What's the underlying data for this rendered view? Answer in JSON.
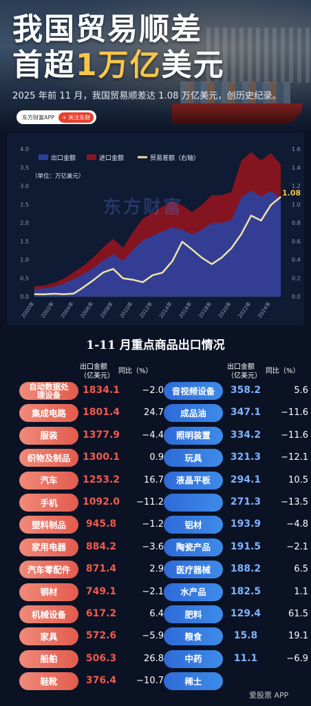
{
  "header": {
    "title_line1": "我国贸易顺差",
    "title_line2_pre": "首超",
    "title_line2_highlight": "1万亿",
    "title_line2_post": "美元",
    "subtitle": "2025 年前 11 月，我国贸易顺差达 1.08 万亿美元，创历史纪录。",
    "badge_app": "东方财富APP",
    "badge_follow": "+ 关注东财"
  },
  "watermark": "东方财富",
  "footer_watermark": "爱股票 APP",
  "colors": {
    "export": "#2e3f9b",
    "import": "#8b1420",
    "balance": "#f2e4a6",
    "left_pill": "#e25b4d",
    "right_pill": "#3d8be8"
  },
  "chart_data": {
    "type": "area",
    "legend": [
      "出口金额",
      "进口金额",
      "贸易差额（右轴）"
    ],
    "unit_label": "（单位：万亿美元）",
    "x": [
      2000,
      2001,
      2002,
      2003,
      2004,
      2005,
      2006,
      2007,
      2008,
      2009,
      2010,
      2011,
      2012,
      2013,
      2014,
      2015,
      2016,
      2017,
      2018,
      2019,
      2020,
      2021,
      2022,
      2023,
      2024,
      2025
    ],
    "x_tick_labels": [
      "2000年",
      "2002年",
      "2004年",
      "2006年",
      "2008年",
      "2010年",
      "2012年",
      "2014年",
      "2016年",
      "2018年",
      "2020年",
      "2022年",
      "2024年"
    ],
    "series": [
      {
        "name": "出口金额",
        "axis": "left",
        "values": [
          0.25,
          0.27,
          0.33,
          0.44,
          0.59,
          0.76,
          0.97,
          1.22,
          1.43,
          1.2,
          1.58,
          1.9,
          2.05,
          2.21,
          2.34,
          2.27,
          2.1,
          2.26,
          2.49,
          2.5,
          2.59,
          3.36,
          3.59,
          3.38,
          3.58,
          3.31
        ]
      },
      {
        "name": "进口金额",
        "axis": "left",
        "values": [
          0.23,
          0.24,
          0.3,
          0.41,
          0.56,
          0.66,
          0.79,
          0.96,
          1.13,
          1.01,
          1.4,
          1.74,
          1.82,
          1.95,
          1.96,
          1.68,
          1.59,
          1.84,
          2.14,
          2.08,
          2.06,
          2.69,
          2.72,
          2.56,
          2.59,
          2.23
        ]
      },
      {
        "name": "贸易差额（右轴）",
        "axis": "right",
        "values": [
          0.024,
          0.023,
          0.03,
          0.025,
          0.032,
          0.102,
          0.178,
          0.262,
          0.298,
          0.196,
          0.182,
          0.155,
          0.23,
          0.259,
          0.383,
          0.594,
          0.51,
          0.42,
          0.351,
          0.421,
          0.524,
          0.676,
          0.877,
          0.823,
          0.992,
          1.08
        ]
      }
    ],
    "ylim_left": [
      0,
      4.0
    ],
    "yticks_left": [
      "0.0",
      "0.5",
      "1.0",
      "1.5",
      "2.0",
      "2.5",
      "3.0",
      "3.5",
      "4.0"
    ],
    "ylim_right": [
      0,
      1.6
    ],
    "yticks_right": [
      "0.0",
      "0.2",
      "0.4",
      "0.6",
      "0.8",
      "1.0",
      "1.2",
      "1.4",
      "1.6"
    ],
    "end_label": "1.08",
    "legend_position": "top-left"
  },
  "table": {
    "title": "1-11 月重点商品出口情况",
    "col_value": "出口金额（亿美元）",
    "col_value_l1": "出口金额",
    "col_value_l2": "（亿美元）",
    "col_yoy": "同比（%）",
    "left_rows": [
      {
        "name": "自动数据处理设备",
        "value": "1834.1",
        "yoy": "−2.0"
      },
      {
        "name": "集成电路",
        "value": "1801.4",
        "yoy": "24.7"
      },
      {
        "name": "服装",
        "value": "1377.9",
        "yoy": "−4.4"
      },
      {
        "name": "织物及制品",
        "value": "1300.1",
        "yoy": "0.9"
      },
      {
        "name": "汽车",
        "value": "1253.2",
        "yoy": "16.7"
      },
      {
        "name": "手机",
        "value": "1092.0",
        "yoy": "−11.2"
      },
      {
        "name": "塑料制品",
        "value": "945.8",
        "yoy": "−1.2"
      },
      {
        "name": "家用电器",
        "value": "884.2",
        "yoy": "−3.6"
      },
      {
        "name": "汽车零配件",
        "value": "871.4",
        "yoy": "2.9"
      },
      {
        "name": "钢材",
        "value": "749.1",
        "yoy": "−2.1"
      },
      {
        "name": "机械设备",
        "value": "617.2",
        "yoy": "6.4"
      },
      {
        "name": "家具",
        "value": "572.6",
        "yoy": "−5.9"
      },
      {
        "name": "船舶",
        "value": "506.3",
        "yoy": "26.8"
      },
      {
        "name": "鞋靴",
        "value": "376.4",
        "yoy": "−10.7"
      }
    ],
    "right_rows": [
      {
        "name": "音视频设备",
        "value": "358.2",
        "yoy": "5.6"
      },
      {
        "name": "成品油",
        "value": "347.1",
        "yoy": "−11.6"
      },
      {
        "name": "照明装置",
        "value": "334.2",
        "yoy": "−11.6"
      },
      {
        "name": "玩具",
        "value": "321.3",
        "yoy": "−12.1"
      },
      {
        "name": "液晶平板",
        "value": "294.1",
        "yoy": "10.5"
      },
      {
        "name": "",
        "value": "271.3",
        "yoy": "−13.5"
      },
      {
        "name": "铝材",
        "value": "193.9",
        "yoy": "−4.8"
      },
      {
        "name": "陶瓷产品",
        "value": "191.5",
        "yoy": "−2.1"
      },
      {
        "name": "医疗器械",
        "value": "188.2",
        "yoy": "6.5"
      },
      {
        "name": "水产品",
        "value": "182.5",
        "yoy": "1.1"
      },
      {
        "name": "肥料",
        "value": "129.4",
        "yoy": "61.5"
      },
      {
        "name": "粮食",
        "value": "15.8",
        "yoy": "19.1"
      },
      {
        "name": "中药",
        "value": "11.1",
        "yoy": "−6.9"
      },
      {
        "name": "稀土",
        "value": "",
        "yoy": ""
      }
    ]
  }
}
